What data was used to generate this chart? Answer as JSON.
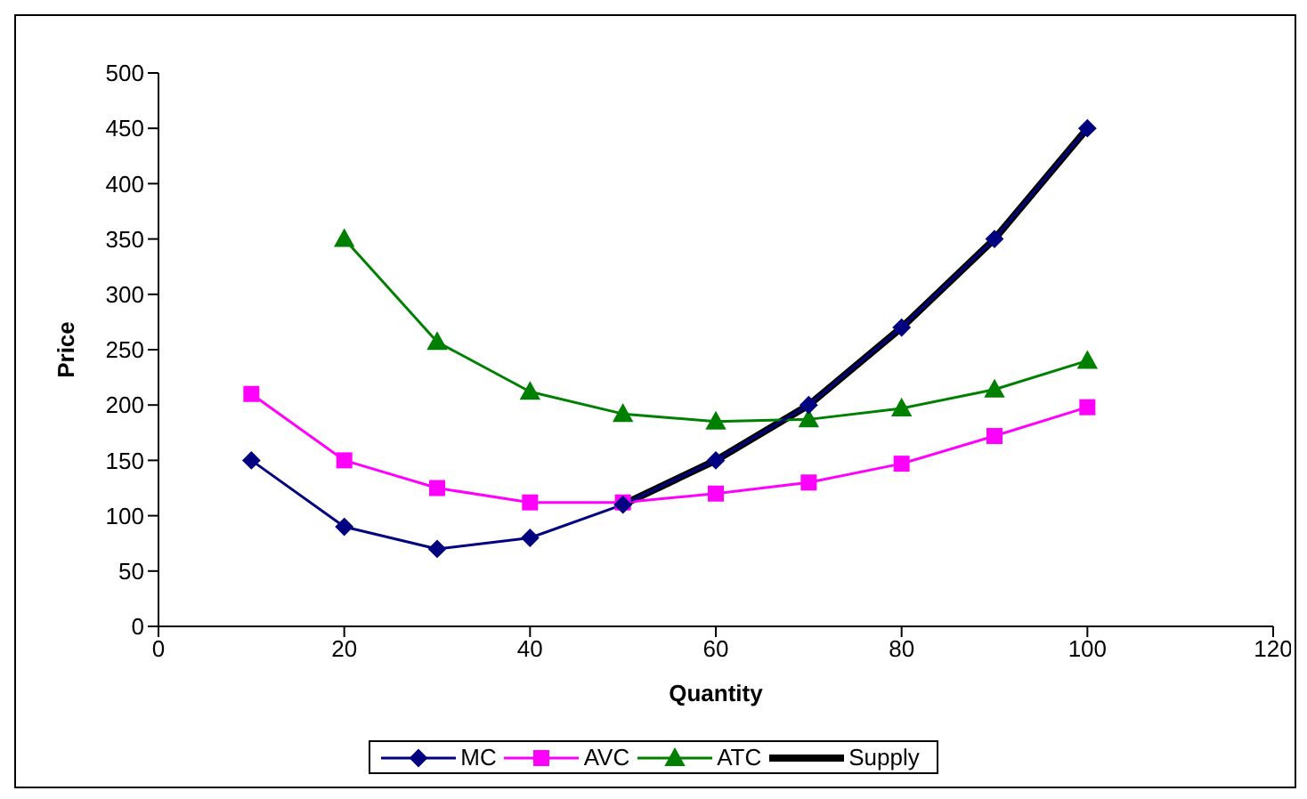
{
  "chart_data": {
    "type": "line",
    "xlabel": "Quantity",
    "ylabel": "Price",
    "x": [
      10,
      20,
      30,
      40,
      50,
      60,
      70,
      80,
      90,
      100
    ],
    "xlim": [
      0,
      120
    ],
    "xticks": [
      0,
      20,
      40,
      60,
      80,
      100,
      120
    ],
    "ylim": [
      0,
      500
    ],
    "yticks": [
      0,
      50,
      100,
      150,
      200,
      250,
      300,
      350,
      400,
      450,
      500
    ],
    "grid": false,
    "legend": "bottom",
    "series": [
      {
        "name": "MC",
        "color": "#000080",
        "marker": "diamond",
        "values": [
          150,
          90,
          70,
          80,
          110,
          150,
          200,
          270,
          350,
          450
        ]
      },
      {
        "name": "AVC",
        "color": "#ff00ff",
        "marker": "square",
        "values": [
          210,
          150,
          125,
          112,
          112,
          120,
          130,
          147,
          172,
          198
        ]
      },
      {
        "name": "ATC",
        "color": "#008000",
        "marker": "triangle",
        "values": [
          null,
          350,
          257,
          212,
          192,
          185,
          187,
          197,
          214,
          240
        ]
      },
      {
        "name": "Supply",
        "color": "#000000",
        "marker": "none",
        "x": [
          50,
          60,
          70,
          80,
          90,
          100
        ],
        "values": [
          110,
          150,
          200,
          270,
          350,
          450
        ]
      }
    ]
  }
}
